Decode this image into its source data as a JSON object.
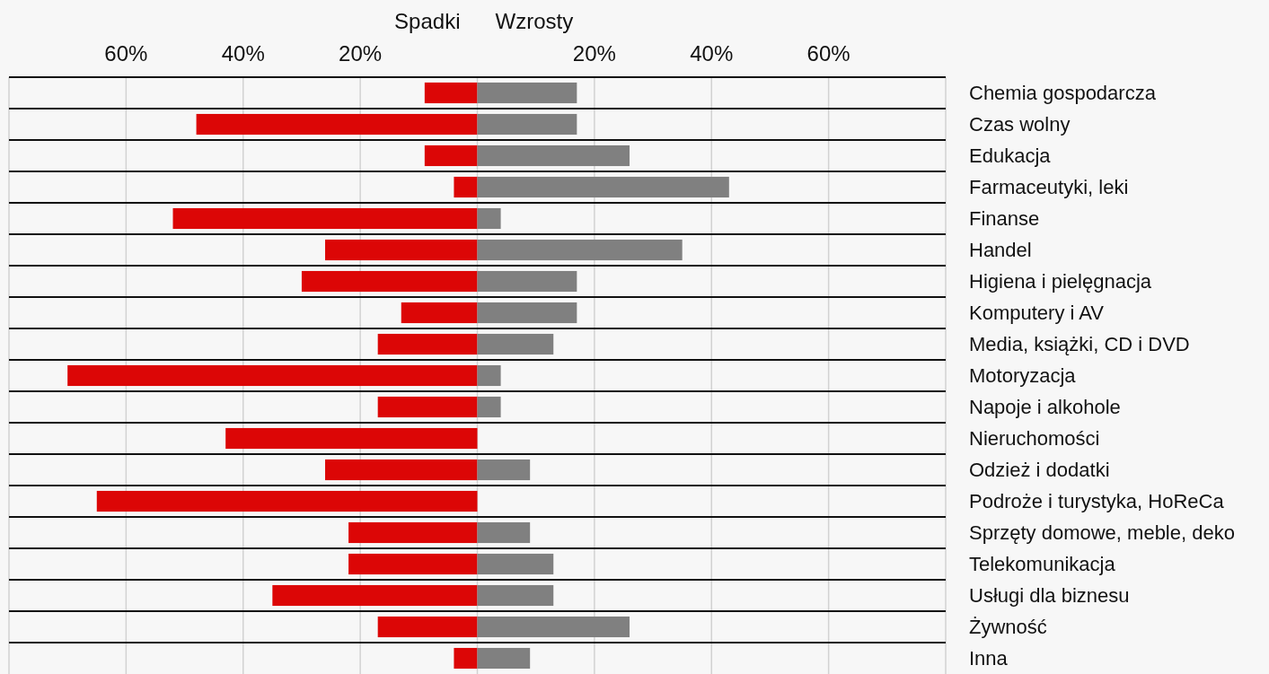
{
  "chart_data": {
    "type": "bar",
    "orientation": "horizontal",
    "stacked": true,
    "categories": [
      "Chemia gospodarcza",
      "Czas wolny",
      "Edukacja",
      "Farmaceutyki, leki",
      "Finanse",
      "Handel",
      "Higiena i pielęgnacja",
      "Komputery i AV",
      "Media, książki, CD i DVD",
      "Motoryzacja",
      "Napoje i alkohole",
      "Nieruchomości",
      "Odzież i dodatki",
      "Podroże i turystyka, HoReCa",
      "Sprzęty domowe, meble, deko",
      "Telekomunikacja",
      "Usługi dla biznesu",
      "Żywność",
      "Inna"
    ],
    "series": [
      {
        "name": "Spadki",
        "color": "#dc0606",
        "values": [
          -9,
          -48,
          -9,
          -4,
          -52,
          -26,
          -30,
          -13,
          -17,
          -70,
          -17,
          -43,
          -26,
          -65,
          -22,
          -22,
          -35,
          -17,
          -4
        ]
      },
      {
        "name": "Wzrosty",
        "color": "#808080",
        "values": [
          17,
          17,
          26,
          43,
          4,
          35,
          17,
          17,
          13,
          4,
          4,
          0,
          9,
          0,
          9,
          13,
          13,
          26,
          9
        ]
      }
    ],
    "xlim": [
      -80,
      80
    ],
    "xticks": [
      {
        "value": -80,
        "label": null
      },
      {
        "value": -60,
        "label": "60%"
      },
      {
        "value": -40,
        "label": "40%"
      },
      {
        "value": -20,
        "label": "20%"
      },
      {
        "value": 0,
        "label": null
      },
      {
        "value": 20,
        "label": "20%"
      },
      {
        "value": 40,
        "label": "40%"
      },
      {
        "value": 60,
        "label": "60%"
      },
      {
        "value": 80,
        "label": null
      }
    ],
    "grid": true,
    "legend": "top"
  }
}
